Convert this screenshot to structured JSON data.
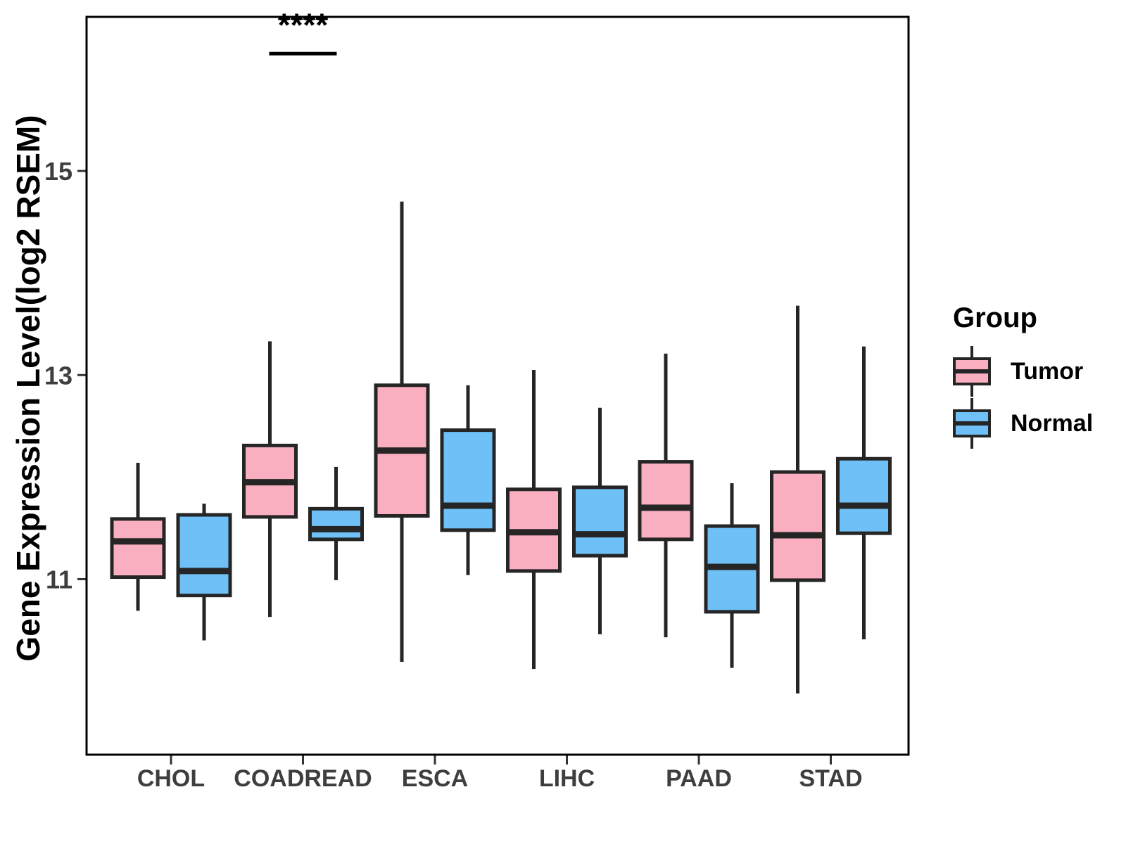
{
  "chart_data": {
    "type": "boxplot",
    "title": "",
    "ylabel": "Gene Expression Level(log2 RSEM)",
    "xlabel": "",
    "categories": [
      "CHOL",
      "COADREAD",
      "ESCA",
      "LIHC",
      "PAAD",
      "STAD"
    ],
    "y_ticks": [
      11,
      13,
      15
    ],
    "ylim": [
      9.28,
      16.51
    ],
    "grid": false,
    "legend_position": "right",
    "series": [
      {
        "name": "Tumor",
        "color": "#FAAFC1",
        "boxes": [
          {
            "category": "CHOL",
            "low": 10.69,
            "q1": 11.02,
            "median": 11.37,
            "q3": 11.59,
            "high": 12.14
          },
          {
            "category": "COADREAD",
            "low": 10.63,
            "q1": 11.61,
            "median": 11.95,
            "q3": 12.31,
            "high": 13.33
          },
          {
            "category": "ESCA",
            "low": 10.19,
            "q1": 11.62,
            "median": 12.26,
            "q3": 12.9,
            "high": 14.7
          },
          {
            "category": "LIHC",
            "low": 10.12,
            "q1": 11.08,
            "median": 11.46,
            "q3": 11.88,
            "high": 13.05
          },
          {
            "category": "PAAD",
            "low": 10.43,
            "q1": 11.39,
            "median": 11.7,
            "q3": 12.15,
            "high": 13.21
          },
          {
            "category": "STAD",
            "low": 9.88,
            "q1": 10.99,
            "median": 11.43,
            "q3": 12.05,
            "high": 13.68
          }
        ]
      },
      {
        "name": "Normal",
        "color": "#6FC0F6",
        "boxes": [
          {
            "category": "CHOL",
            "low": 10.4,
            "q1": 10.84,
            "median": 11.08,
            "q3": 11.63,
            "high": 11.74
          },
          {
            "category": "COADREAD",
            "low": 10.99,
            "q1": 11.39,
            "median": 11.49,
            "q3": 11.69,
            "high": 12.1
          },
          {
            "category": "ESCA",
            "low": 11.04,
            "q1": 11.48,
            "median": 11.72,
            "q3": 12.46,
            "high": 12.9
          },
          {
            "category": "LIHC",
            "low": 10.46,
            "q1": 11.23,
            "median": 11.44,
            "q3": 11.9,
            "high": 12.68
          },
          {
            "category": "PAAD",
            "low": 10.13,
            "q1": 10.68,
            "median": 11.12,
            "q3": 11.52,
            "high": 11.94
          },
          {
            "category": "STAD",
            "low": 10.41,
            "q1": 11.45,
            "median": 11.72,
            "q3": 12.18,
            "high": 13.28
          }
        ]
      }
    ],
    "annotations": [
      {
        "label": "****",
        "category": "COADREAD",
        "bar_y": 16.15,
        "label_y": 16.32
      }
    ]
  },
  "legend": {
    "title": "Group",
    "items": [
      {
        "label": "Tumor",
        "color": "#FAAFC1"
      },
      {
        "label": "Normal",
        "color": "#6FC0F6"
      }
    ]
  },
  "style": {
    "background": "#FFFFFF",
    "box_border_color": "#252525",
    "panel_border_color": "#000000",
    "tick_color": "#333333",
    "tick_label_color": "#3E3E3E",
    "annotation_color": "#000000"
  }
}
